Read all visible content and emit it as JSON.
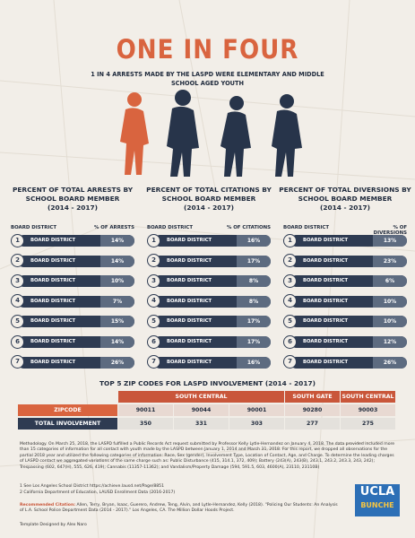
{
  "title": "ONE IN FOUR",
  "subtitle": "1 IN 4 ARRESTS MADE BY THE LASPD WERE ELEMENTARY AND MIDDLE SCHOOL AGED YOUTH",
  "sections": [
    {
      "title": "PERCENT OF TOTAL ARRESTS BY SCHOOL BOARD MEMBER",
      "period": "(2014 - 2017)",
      "col_left": "BOARD DISTRICT",
      "col_right": "% OF ARRESTS",
      "rows": [
        {
          "num": "1",
          "label": "BOARD DISTRICT",
          "value": "14%"
        },
        {
          "num": "2",
          "label": "BOARD DISTRICT",
          "value": "14%"
        },
        {
          "num": "3",
          "label": "BOARD DISTRICT",
          "value": "10%"
        },
        {
          "num": "4",
          "label": "BOARD DISTRICT",
          "value": "7%"
        },
        {
          "num": "5",
          "label": "BOARD DISTRICT",
          "value": "15%"
        },
        {
          "num": "6",
          "label": "BOARD DISTRICT",
          "value": "14%"
        },
        {
          "num": "7",
          "label": "BOARD DISTRICT",
          "value": "26%"
        }
      ]
    },
    {
      "title": "PERCENT OF TOTAL CITATIONS BY SCHOOL BOARD MEMBER",
      "period": "(2014 - 2017)",
      "col_left": "BOARD DISTRICT",
      "col_right": "% OF CITATIONS",
      "rows": [
        {
          "num": "1",
          "label": "BOARD DISTRICT",
          "value": "16%"
        },
        {
          "num": "2",
          "label": "BOARD DISTRICT",
          "value": "17%"
        },
        {
          "num": "3",
          "label": "BOARD DISTRICT",
          "value": "8%"
        },
        {
          "num": "4",
          "label": "BOARD DISTRICT",
          "value": "8%"
        },
        {
          "num": "5",
          "label": "BOARD DISTRICT",
          "value": "17%"
        },
        {
          "num": "6",
          "label": "BOARD DISTRICT",
          "value": "17%"
        },
        {
          "num": "7",
          "label": "BOARD DISTRICT",
          "value": "16%"
        }
      ]
    },
    {
      "title": "PERCENT OF TOTAL DIVERSIONS BY SCHOOL BOARD MEMBER",
      "period": "(2014 - 2017)",
      "col_left": "BOARD DISTRICT",
      "col_right": "% OF DIVERSIONS",
      "rows": [
        {
          "num": "1",
          "label": "BOARD DISTRICT",
          "value": "13%"
        },
        {
          "num": "2",
          "label": "BOARD DISTRICT",
          "value": "23%"
        },
        {
          "num": "3",
          "label": "BOARD DISTRICT",
          "value": "6%"
        },
        {
          "num": "4",
          "label": "BOARD DISTRICT",
          "value": "10%"
        },
        {
          "num": "5",
          "label": "BOARD DISTRICT",
          "value": "10%"
        },
        {
          "num": "6",
          "label": "BOARD DISTRICT",
          "value": "12%"
        },
        {
          "num": "7",
          "label": "BOARD DISTRICT",
          "value": "26%"
        }
      ]
    }
  ],
  "table": {
    "title": "TOP 5 ZIP CODES FOR LASPD INVOLVEMENT (2014 - 2017)",
    "groups": [
      "SOUTH CENTRAL",
      "SOUTH GATE",
      "SOUTH CENTRAL"
    ],
    "rows": [
      {
        "label": "ZIPCODE",
        "cells": [
          "90011",
          "90044",
          "90001",
          "90280",
          "90003"
        ]
      },
      {
        "label": "TOTAL INVOLVEMENT",
        "cells": [
          "350",
          "331",
          "303",
          "277",
          "275"
        ]
      }
    ]
  },
  "methodology": "Methodology. On March 25, 2018, the LASPD fulfilled a Public Records Act request submitted by Professor Kelly Lytle-Hernandez on January 4, 2018. The data provided included more than 15 categories of information for all contact with youth made by the LASPD between January 1, 2014 and March 31, 2018. For this report, we dropped all observations for the partial 2018 year and utilized the following categories of information: Race, Sex (gender), Involvement Type, Location of Contact, Age, and Charge. To determine the leading charges of LASPD contact we aggregated variations of the same charge such as: Public Disturbance (415, 314.1, 372, 409); Battery (243(A), 243(B), 243.1, 243.2, 243.3, 243, 242); Trespassing (602, 647(H), 555, 626, 419); Cannabis (11357-11362); and Vandalism/Property Damage (594, 591.5, 603, 4600(A), 23110, 23110B)",
  "footnotes": [
    "1 See Los Angeles School District https://achieve.lausd.net/Page/8851",
    "2 California Department of Education, LAUSD Enrollment Data (2016-2017)"
  ],
  "citation_label": "Recommended Citation:",
  "citation": "Allen, Terry, Bryan, Isaac, Guerero, Andrew, Teng, Alvin, and Lytle-Hernandez, Kelly (2018). \"Policing Our Students: An Analysis of L.A. School Police Department Data (2014 - 2017).\" Los Angeles, CA. The Million Dollar Hoods Project.",
  "credit": "Template Designed by Alex Naro",
  "logo": {
    "top": "UCLA",
    "bottom": "BUNCHE"
  }
}
